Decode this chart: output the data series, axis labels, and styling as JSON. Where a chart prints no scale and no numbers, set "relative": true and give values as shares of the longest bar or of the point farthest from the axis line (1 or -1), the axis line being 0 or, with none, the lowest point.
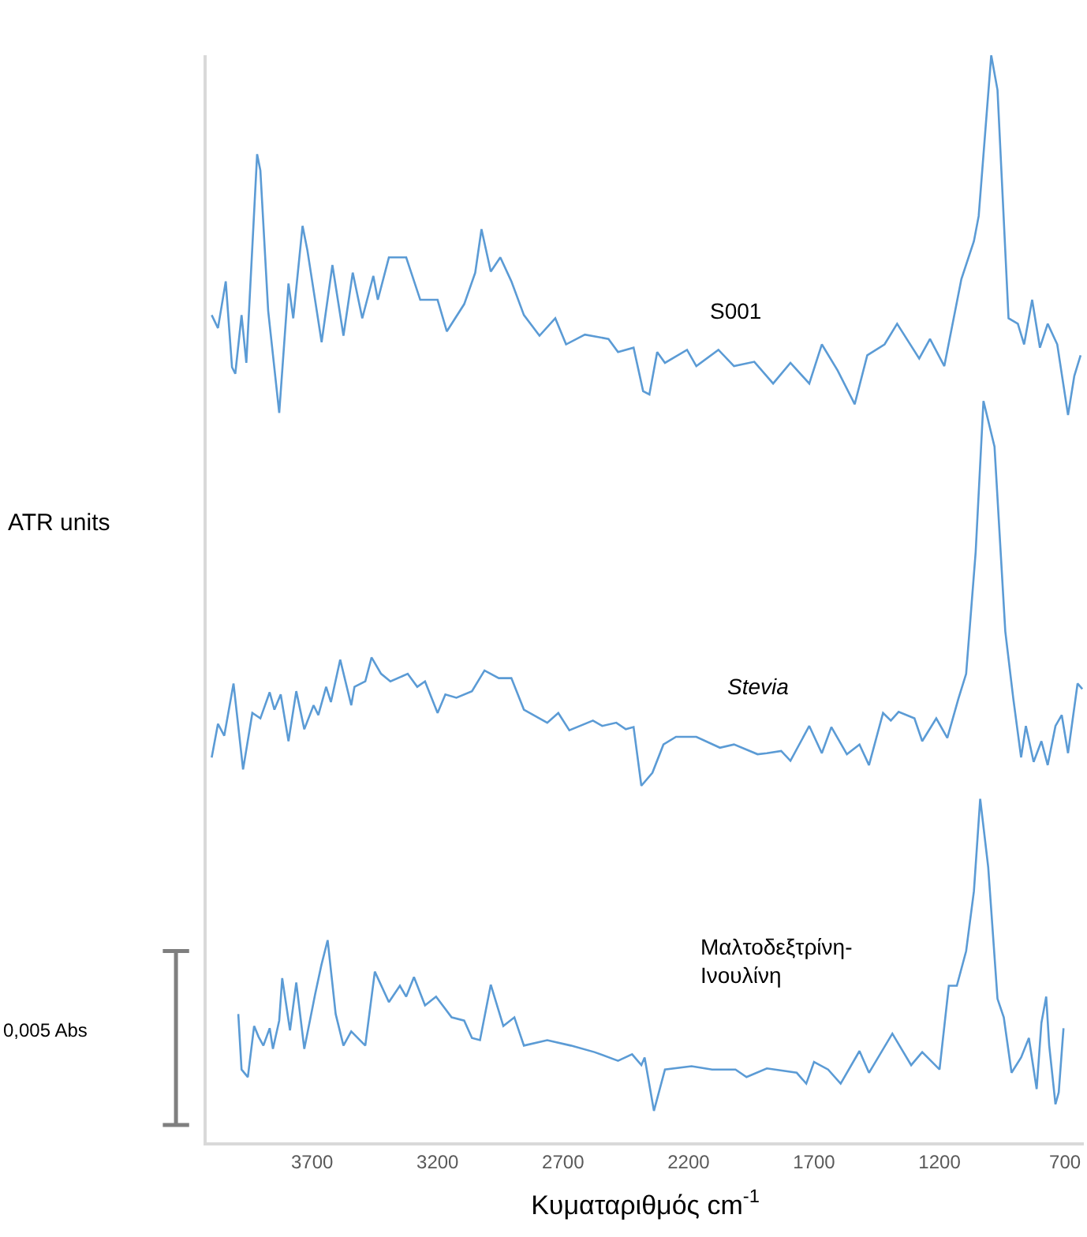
{
  "chart_data": {
    "type": "line",
    "relative": true,
    "xlabel": "Κυματαριθμός cm$^{-1}$",
    "ylabel": "ATR units",
    "xlim": [
      4120,
      625
    ],
    "xticks": [
      3700,
      3200,
      2700,
      2200,
      1700,
      1200,
      700
    ],
    "legend": false,
    "annotations": [
      "0,005 Abs"
    ],
    "series": [
      {
        "name": "S001",
        "color": "#5b9bd5",
        "x": [
          4100,
          4075,
          4044,
          4019,
          4006,
          3981,
          3962,
          3919,
          3906,
          3875,
          3831,
          3794,
          3775,
          3738,
          3719,
          3662,
          3619,
          3575,
          3538,
          3500,
          3456,
          3438,
          3394,
          3325,
          3269,
          3200,
          3163,
          3094,
          3050,
          3025,
          2988,
          2950,
          2906,
          2856,
          2794,
          2731,
          2688,
          2613,
          2519,
          2481,
          2419,
          2381,
          2356,
          2325,
          2294,
          2206,
          2169,
          2081,
          2019,
          1938,
          1863,
          1794,
          1719,
          1669,
          1606,
          1538,
          1488,
          1419,
          1369,
          1281,
          1238,
          1181,
          1113,
          1063,
          1044,
          994,
          969,
          925,
          888,
          863,
          831,
          800,
          769,
          731,
          688,
          663,
          638
        ],
        "values": [
          0.761,
          0.749,
          0.792,
          0.713,
          0.707,
          0.761,
          0.717,
          0.909,
          0.894,
          0.765,
          0.671,
          0.79,
          0.758,
          0.843,
          0.821,
          0.736,
          0.807,
          0.742,
          0.8,
          0.758,
          0.797,
          0.775,
          0.814,
          0.814,
          0.775,
          0.775,
          0.746,
          0.771,
          0.8,
          0.84,
          0.801,
          0.814,
          0.792,
          0.761,
          0.742,
          0.758,
          0.734,
          0.743,
          0.739,
          0.727,
          0.731,
          0.691,
          0.688,
          0.727,
          0.717,
          0.729,
          0.714,
          0.729,
          0.714,
          0.718,
          0.698,
          0.717,
          0.698,
          0.734,
          0.71,
          0.679,
          0.724,
          0.734,
          0.753,
          0.721,
          0.739,
          0.714,
          0.794,
          0.829,
          0.852,
          1.0,
          0.968,
          0.758,
          0.753,
          0.734,
          0.775,
          0.731,
          0.753,
          0.734,
          0.669,
          0.705,
          0.724
        ]
      },
      {
        "name": "Stevia",
        "color": "#5b9bd5",
        "x": [
          4100,
          4075,
          4050,
          4013,
          3975,
          3938,
          3906,
          3869,
          3850,
          3825,
          3794,
          3763,
          3731,
          3694,
          3675,
          3644,
          3625,
          3588,
          3544,
          3531,
          3488,
          3463,
          3425,
          3388,
          3319,
          3281,
          3250,
          3200,
          3169,
          3125,
          3063,
          3013,
          2956,
          2906,
          2856,
          2763,
          2719,
          2675,
          2581,
          2544,
          2488,
          2450,
          2419,
          2388,
          2344,
          2300,
          2250,
          2169,
          2075,
          2019,
          1925,
          1888,
          1831,
          1794,
          1719,
          1669,
          1631,
          1569,
          1519,
          1481,
          1425,
          1394,
          1363,
          1300,
          1269,
          1213,
          1169,
          1125,
          1094,
          1056,
          1025,
          981,
          938,
          906,
          875,
          856,
          825,
          794,
          769,
          738,
          713,
          688,
          650,
          631
        ],
        "values": [
          0.354,
          0.385,
          0.374,
          0.422,
          0.343,
          0.395,
          0.39,
          0.414,
          0.398,
          0.412,
          0.369,
          0.415,
          0.38,
          0.402,
          0.393,
          0.419,
          0.405,
          0.444,
          0.402,
          0.419,
          0.424,
          0.446,
          0.431,
          0.424,
          0.431,
          0.419,
          0.424,
          0.395,
          0.412,
          0.409,
          0.415,
          0.434,
          0.427,
          0.427,
          0.398,
          0.386,
          0.395,
          0.379,
          0.388,
          0.383,
          0.386,
          0.38,
          0.382,
          0.328,
          0.34,
          0.366,
          0.373,
          0.373,
          0.363,
          0.366,
          0.357,
          0.358,
          0.36,
          0.351,
          0.383,
          0.358,
          0.382,
          0.357,
          0.366,
          0.347,
          0.395,
          0.388,
          0.396,
          0.39,
          0.369,
          0.39,
          0.372,
          0.408,
          0.431,
          0.543,
          0.682,
          0.64,
          0.47,
          0.408,
          0.354,
          0.383,
          0.35,
          0.369,
          0.347,
          0.383,
          0.393,
          0.358,
          0.422,
          0.417
        ]
      },
      {
        "name": "Μαλτοδεξτρίνη-Ινουλίνη",
        "color": "#5b9bd5",
        "x": [
          3994,
          3981,
          3956,
          3931,
          3913,
          3894,
          3869,
          3856,
          3831,
          3819,
          3788,
          3763,
          3731,
          3688,
          3663,
          3638,
          3606,
          3575,
          3544,
          3488,
          3450,
          3394,
          3350,
          3325,
          3294,
          3250,
          3206,
          3144,
          3094,
          3063,
          3031,
          2988,
          2938,
          2894,
          2856,
          2763,
          2669,
          2575,
          2481,
          2425,
          2388,
          2375,
          2338,
          2294,
          2188,
          2106,
          2013,
          1969,
          1888,
          1769,
          1731,
          1700,
          1644,
          1594,
          1519,
          1481,
          1388,
          1313,
          1269,
          1200,
          1163,
          1131,
          1094,
          1063,
          1038,
          1006,
          969,
          944,
          913,
          875,
          844,
          813,
          794,
          775,
          763,
          738,
          725,
          706
        ],
        "values": [
          0.118,
          0.067,
          0.06,
          0.107,
          0.097,
          0.089,
          0.105,
          0.086,
          0.112,
          0.151,
          0.103,
          0.147,
          0.086,
          0.136,
          0.163,
          0.186,
          0.118,
          0.089,
          0.102,
          0.089,
          0.157,
          0.129,
          0.144,
          0.134,
          0.152,
          0.126,
          0.134,
          0.115,
          0.112,
          0.096,
          0.094,
          0.145,
          0.107,
          0.115,
          0.089,
          0.094,
          0.089,
          0.083,
          0.075,
          0.081,
          0.071,
          0.078,
          0.029,
          0.067,
          0.07,
          0.067,
          0.067,
          0.06,
          0.068,
          0.064,
          0.054,
          0.074,
          0.067,
          0.054,
          0.084,
          0.064,
          0.1,
          0.071,
          0.083,
          0.067,
          0.144,
          0.144,
          0.176,
          0.231,
          0.316,
          0.253,
          0.132,
          0.115,
          0.064,
          0.078,
          0.096,
          0.049,
          0.11,
          0.134,
          0.089,
          0.035,
          0.046,
          0.105
        ]
      }
    ]
  }
}
